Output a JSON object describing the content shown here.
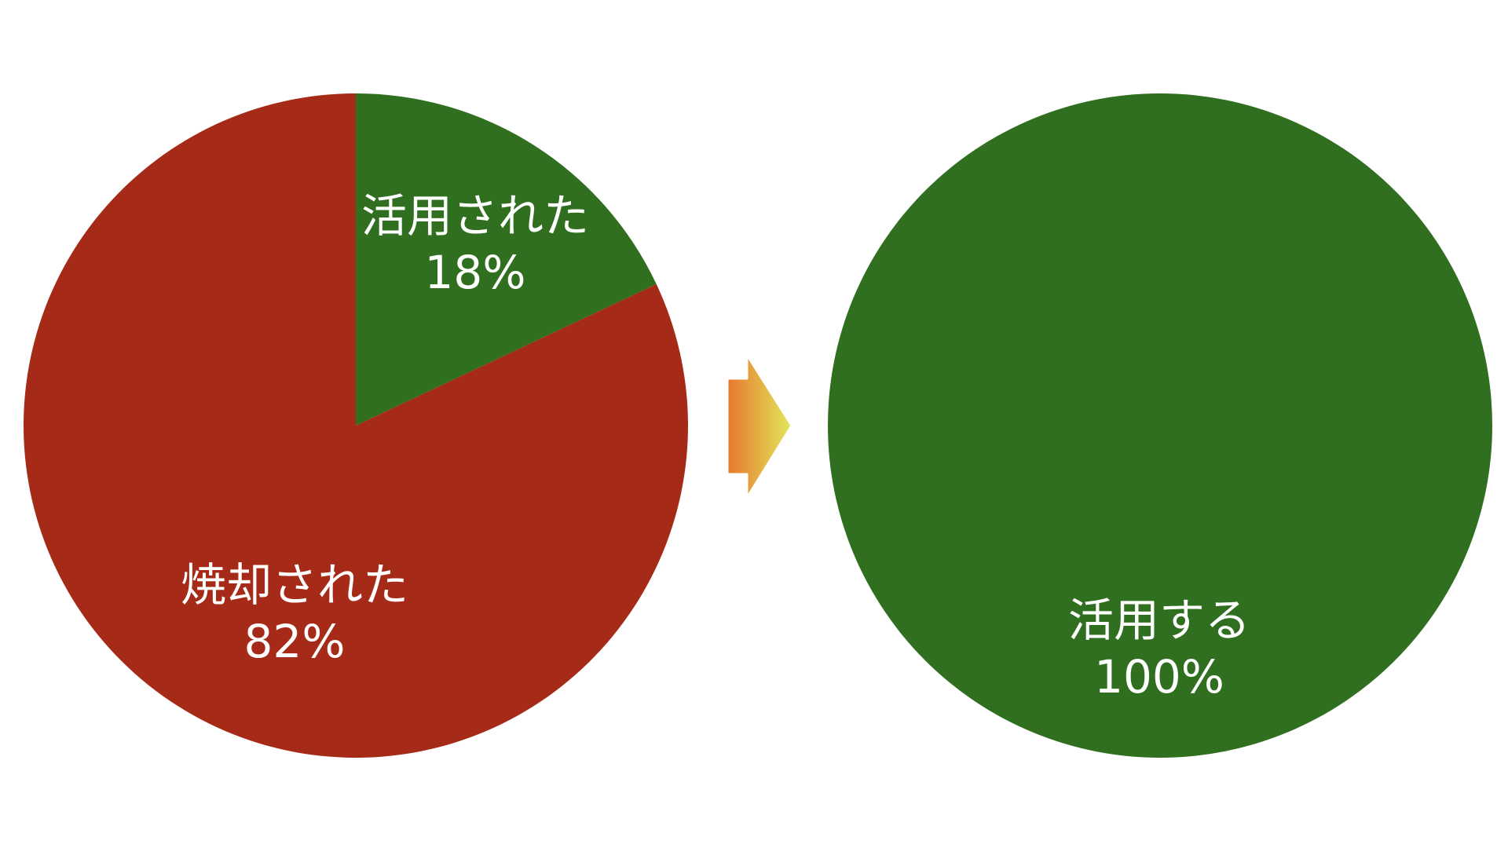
{
  "chart_data": [
    {
      "type": "pie",
      "title": "",
      "slices": [
        {
          "label": "活用された",
          "value": 18,
          "percent_label": "18%",
          "color": "#306F1F"
        },
        {
          "label": "焼却された",
          "value": 82,
          "percent_label": "82%",
          "color": "#A52A17"
        }
      ],
      "start_angle": "12 o'clock",
      "direction": "clockwise"
    },
    {
      "type": "pie",
      "title": "",
      "slices": [
        {
          "label": "活用する",
          "value": 100,
          "percent_label": "100%",
          "color": "#306F1F"
        }
      ]
    }
  ],
  "arrow": {
    "icon": "right-arrow-icon",
    "gradient_start": "#E8772D",
    "gradient_end": "#E2E85B"
  }
}
